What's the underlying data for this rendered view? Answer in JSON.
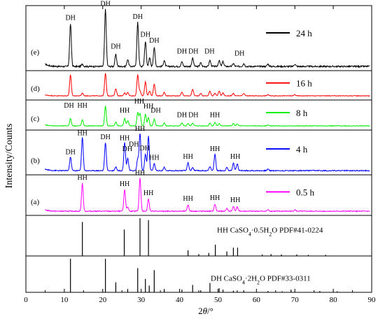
{
  "chart_data": {
    "type": "line",
    "subtype": "stacked XRD patterns with reference stick patterns",
    "xlabel_parts": [
      "2",
      "θ",
      "/°"
    ],
    "ylabel": "Intensity/Counts",
    "xlim": [
      0,
      90
    ],
    "x_ticks": [
      0,
      10,
      20,
      30,
      40,
      50,
      60,
      70,
      80,
      90
    ],
    "panels_top_to_bottom": [
      "e",
      "d",
      "c",
      "b",
      "a",
      "ref_hh",
      "ref_dh"
    ],
    "series": [
      {
        "id": "e",
        "name": "24 h",
        "panel_label": "(e)",
        "color": "#000000",
        "peaks": [
          [
            11.6,
            0.72
          ],
          [
            14.7,
            0.04
          ],
          [
            20.7,
            0.96
          ],
          [
            23.4,
            0.2
          ],
          [
            26.5,
            0.12
          ],
          [
            29.1,
            0.74
          ],
          [
            31.1,
            0.42
          ],
          [
            32.2,
            0.14
          ],
          [
            33.4,
            0.32
          ],
          [
            36.0,
            0.1
          ],
          [
            40.6,
            0.08
          ],
          [
            43.4,
            0.14
          ],
          [
            45.5,
            0.06
          ],
          [
            47.9,
            0.1
          ],
          [
            50.3,
            0.1
          ],
          [
            51.3,
            0.08
          ],
          [
            54.0,
            0.05
          ],
          [
            56.7,
            0.05
          ],
          [
            63.0,
            0.04
          ],
          [
            70.0,
            0.04
          ]
        ],
        "annotations": [
          {
            "text": "DH",
            "x": 11.6,
            "ypos": 0.78
          },
          {
            "text": "DH",
            "x": 20.7,
            "ypos": 1.02
          },
          {
            "text": "DH",
            "x": 23.4,
            "ypos": 0.3
          },
          {
            "text": "DH",
            "x": 29.1,
            "ypos": 0.8
          },
          {
            "text": "DH",
            "x": 31.1,
            "ypos": 0.5
          },
          {
            "text": "DH",
            "x": 33.4,
            "ypos": 0.4
          },
          {
            "text": "DH",
            "x": 40.6,
            "ypos": 0.22
          },
          {
            "text": "DH",
            "x": 43.6,
            "ypos": 0.22
          },
          {
            "text": "DH",
            "x": 47.8,
            "ypos": 0.22
          },
          {
            "text": "DH",
            "x": 55.6,
            "ypos": 0.18
          }
        ]
      },
      {
        "id": "d",
        "name": "16 h",
        "panel_label": "(d)",
        "color": "#ff0000",
        "peaks": [
          [
            11.6,
            0.88
          ],
          [
            14.7,
            0.12
          ],
          [
            20.7,
            0.95
          ],
          [
            23.4,
            0.3
          ],
          [
            25.7,
            0.12
          ],
          [
            26.5,
            0.15
          ],
          [
            29.1,
            0.88
          ],
          [
            29.7,
            0.2
          ],
          [
            31.1,
            0.6
          ],
          [
            32.2,
            0.2
          ],
          [
            33.4,
            0.5
          ],
          [
            36.0,
            0.15
          ],
          [
            40.6,
            0.15
          ],
          [
            43.4,
            0.28
          ],
          [
            45.5,
            0.1
          ],
          [
            47.9,
            0.2
          ],
          [
            49.2,
            0.1
          ],
          [
            50.3,
            0.2
          ],
          [
            51.3,
            0.12
          ],
          [
            54.0,
            0.1
          ],
          [
            56.7,
            0.1
          ],
          [
            63.0,
            0.05
          ],
          [
            70.0,
            0.05
          ]
        ],
        "annotations": []
      },
      {
        "id": "c",
        "name": "8 h",
        "panel_label": "(c)",
        "color": "#00ee00",
        "peaks": [
          [
            11.6,
            0.3
          ],
          [
            14.7,
            0.25
          ],
          [
            20.7,
            0.82
          ],
          [
            23.4,
            0.16
          ],
          [
            25.7,
            0.3
          ],
          [
            26.5,
            0.22
          ],
          [
            29.1,
            0.55
          ],
          [
            29.7,
            0.5
          ],
          [
            31.1,
            0.48
          ],
          [
            31.9,
            0.35
          ],
          [
            33.4,
            0.28
          ],
          [
            36.0,
            0.12
          ],
          [
            40.6,
            0.12
          ],
          [
            42.2,
            0.1
          ],
          [
            43.4,
            0.12
          ],
          [
            47.9,
            0.12
          ],
          [
            49.2,
            0.14
          ],
          [
            50.3,
            0.1
          ],
          [
            54.0,
            0.1
          ],
          [
            55.0,
            0.08
          ],
          [
            63.0,
            0.04
          ]
        ],
        "annotations": [
          {
            "text": "DH",
            "x": 11.2,
            "ypos": 0.75
          },
          {
            "text": "HH",
            "x": 14.7,
            "ypos": 0.75
          },
          {
            "text": "HH",
            "x": 25.7,
            "ypos": 0.55
          },
          {
            "text": "HH",
            "x": 29.5,
            "ypos": 0.92
          },
          {
            "text": "HH",
            "x": 31.9,
            "ypos": 0.72
          },
          {
            "text": "DH",
            "x": 33.8,
            "ypos": 0.55
          },
          {
            "text": "DH",
            "x": 40.6,
            "ypos": 0.36
          },
          {
            "text": "DH",
            "x": 43.6,
            "ypos": 0.36
          },
          {
            "text": "HH",
            "x": 49.2,
            "ypos": 0.36
          }
        ]
      },
      {
        "id": "b",
        "name": "4 h",
        "panel_label": "(b)",
        "color": "#0000ff",
        "peaks": [
          [
            11.6,
            0.35
          ],
          [
            14.7,
            0.85
          ],
          [
            20.7,
            0.72
          ],
          [
            23.4,
            0.1
          ],
          [
            25.7,
            0.72
          ],
          [
            26.5,
            0.32
          ],
          [
            29.1,
            0.3
          ],
          [
            29.7,
            0.95
          ],
          [
            31.1,
            0.42
          ],
          [
            31.9,
            0.88
          ],
          [
            33.4,
            0.18
          ],
          [
            36.0,
            0.08
          ],
          [
            42.2,
            0.2
          ],
          [
            43.4,
            0.08
          ],
          [
            47.9,
            0.1
          ],
          [
            49.2,
            0.42
          ],
          [
            52.3,
            0.08
          ],
          [
            54.0,
            0.2
          ],
          [
            55.0,
            0.18
          ],
          [
            63.0,
            0.04
          ]
        ],
        "annotations": [
          {
            "text": "DH",
            "x": 11.6,
            "ypos": 0.42
          },
          {
            "text": "HH",
            "x": 14.7,
            "ypos": 0.9
          },
          {
            "text": "DH",
            "x": 20.7,
            "ypos": 0.8
          },
          {
            "text": "HH",
            "x": 25.7,
            "ypos": 0.78
          },
          {
            "text": "DH",
            "x": 26.4,
            "ypos": 0.5
          },
          {
            "text": "DH",
            "x": 28.1,
            "ypos": 0.62
          },
          {
            "text": "HH",
            "x": 29.7,
            "ypos": 1.02
          },
          {
            "text": "DH",
            "x": 30.9,
            "ypos": 0.52
          },
          {
            "text": "HH",
            "x": 33.4,
            "ypos": 0.28
          },
          {
            "text": "HH",
            "x": 42.2,
            "ypos": 0.3
          },
          {
            "text": "HH",
            "x": 49.2,
            "ypos": 0.5
          },
          {
            "text": "HH",
            "x": 54.5,
            "ypos": 0.3
          }
        ]
      },
      {
        "id": "a",
        "name": "0.5 h",
        "panel_label": "(a)",
        "color": "#ff00ff",
        "peaks": [
          [
            14.7,
            0.8
          ],
          [
            25.7,
            0.62
          ],
          [
            26.5,
            0.12
          ],
          [
            29.7,
            0.95
          ],
          [
            31.9,
            0.35
          ],
          [
            42.2,
            0.18
          ],
          [
            49.2,
            0.2
          ],
          [
            52.3,
            0.08
          ],
          [
            54.0,
            0.14
          ],
          [
            55.0,
            0.12
          ],
          [
            63.0,
            0.04
          ],
          [
            70.0,
            0.04
          ]
        ],
        "annotations": [
          {
            "text": "HH",
            "x": 14.7,
            "ypos": 0.9
          },
          {
            "text": "HH",
            "x": 25.7,
            "ypos": 0.72
          },
          {
            "text": "HH",
            "x": 29.7,
            "ypos": 1.03
          },
          {
            "text": "HH",
            "x": 31.9,
            "ypos": 0.46
          },
          {
            "text": "HH",
            "x": 42.2,
            "ypos": 0.3
          },
          {
            "text": "HH",
            "x": 49.2,
            "ypos": 0.32
          },
          {
            "text": "HH",
            "x": 54.5,
            "ypos": 0.26
          }
        ]
      }
    ],
    "reference_patterns": [
      {
        "id": "ref_hh",
        "phase_code": "HH",
        "label_formula": "CaSO4·0.5H2O",
        "card": "PDF#41-0224",
        "sticks": [
          [
            14.7,
            0.9
          ],
          [
            25.6,
            0.7
          ],
          [
            29.7,
            1.0
          ],
          [
            31.9,
            0.95
          ],
          [
            42.2,
            0.15
          ],
          [
            45.0,
            0.05
          ],
          [
            47.6,
            0.08
          ],
          [
            49.3,
            0.3
          ],
          [
            52.3,
            0.12
          ],
          [
            54.0,
            0.22
          ],
          [
            55.1,
            0.22
          ],
          [
            61.5,
            0.04
          ],
          [
            63.8,
            0.05
          ],
          [
            66.5,
            0.04
          ],
          [
            70.5,
            0.04
          ],
          [
            73.5,
            0.03
          ],
          [
            78.0,
            0.03
          ]
        ]
      },
      {
        "id": "ref_dh",
        "phase_code": "DH",
        "label_formula": "CaSO4·2H2O",
        "card": "PDF#33-0311",
        "sticks": [
          [
            11.6,
            1.0
          ],
          [
            20.7,
            1.0
          ],
          [
            23.4,
            0.3
          ],
          [
            26.5,
            0.1
          ],
          [
            29.1,
            0.72
          ],
          [
            31.1,
            0.4
          ],
          [
            32.1,
            0.2
          ],
          [
            33.4,
            0.66
          ],
          [
            36.0,
            0.1
          ],
          [
            40.6,
            0.08
          ],
          [
            43.4,
            0.22
          ],
          [
            45.5,
            0.06
          ],
          [
            47.9,
            0.28
          ],
          [
            50.3,
            0.12
          ],
          [
            51.3,
            0.08
          ],
          [
            54.0,
            0.05
          ],
          [
            56.7,
            0.06
          ],
          [
            63.0,
            0.04
          ],
          [
            66.7,
            0.03
          ],
          [
            69.0,
            0.08
          ],
          [
            76.5,
            0.04
          ],
          [
            81.0,
            0.03
          ]
        ]
      }
    ],
    "legend_placement": "right side of each pattern panel"
  }
}
